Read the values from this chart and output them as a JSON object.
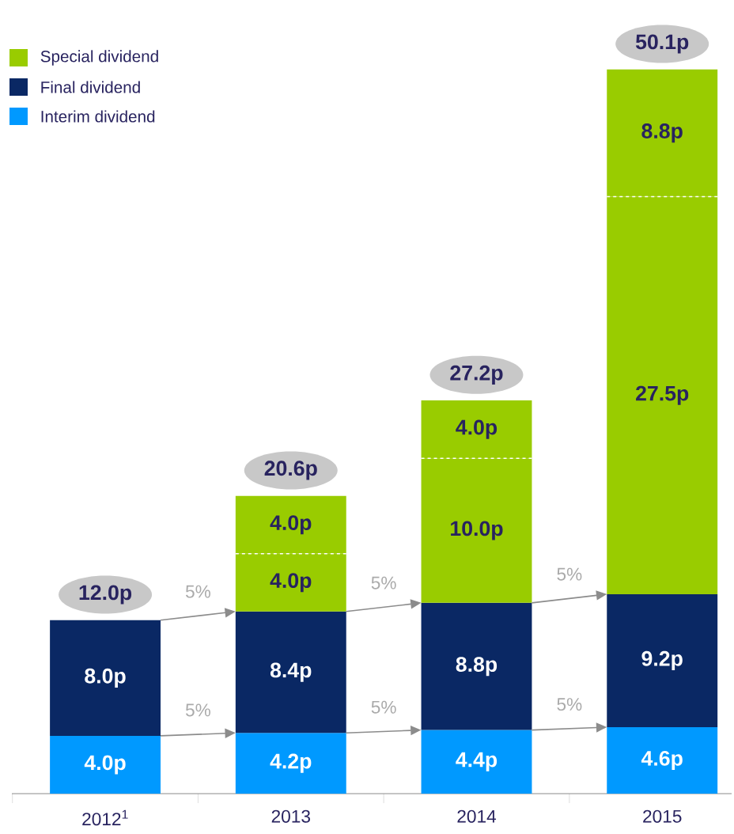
{
  "chart_data": {
    "type": "bar",
    "stacked": true,
    "legend": "top left",
    "categories": [
      "2012$^{1}$",
      "2013",
      "2014",
      "2015"
    ],
    "series": [
      {
        "name": "Interim dividend",
        "color": "#0099ff",
        "values": [
          4.0,
          4.2,
          4.4,
          4.6
        ],
        "value_labels": [
          "4.0p",
          "4.2p",
          "4.4p",
          "4.6p"
        ]
      },
      {
        "name": "Final dividend",
        "color": "#0a2864",
        "values": [
          8.0,
          8.4,
          8.8,
          9.2
        ],
        "value_labels": [
          "8.0p",
          "8.4p",
          "8.8p",
          "9.2p"
        ]
      },
      {
        "name": "Special dividend",
        "color": "#99cc00",
        "values": [
          null,
          4.0,
          10.0,
          27.5
        ],
        "value_labels": [
          null,
          "4.0p",
          "10.0p",
          "27.5p"
        ]
      },
      {
        "color": "#99cc00",
        "values": [
          null,
          4.0,
          4.0,
          8.8
        ],
        "value_labels": [
          null,
          "4.0p",
          "4.0p",
          "8.8p"
        ]
      }
    ],
    "totals": [
      "12.0p",
      "20.6p",
      "27.2p",
      "50.1p"
    ],
    "annotations": [
      "5%",
      "5%",
      "5%",
      "5%",
      "5%",
      "5%"
    ]
  }
}
